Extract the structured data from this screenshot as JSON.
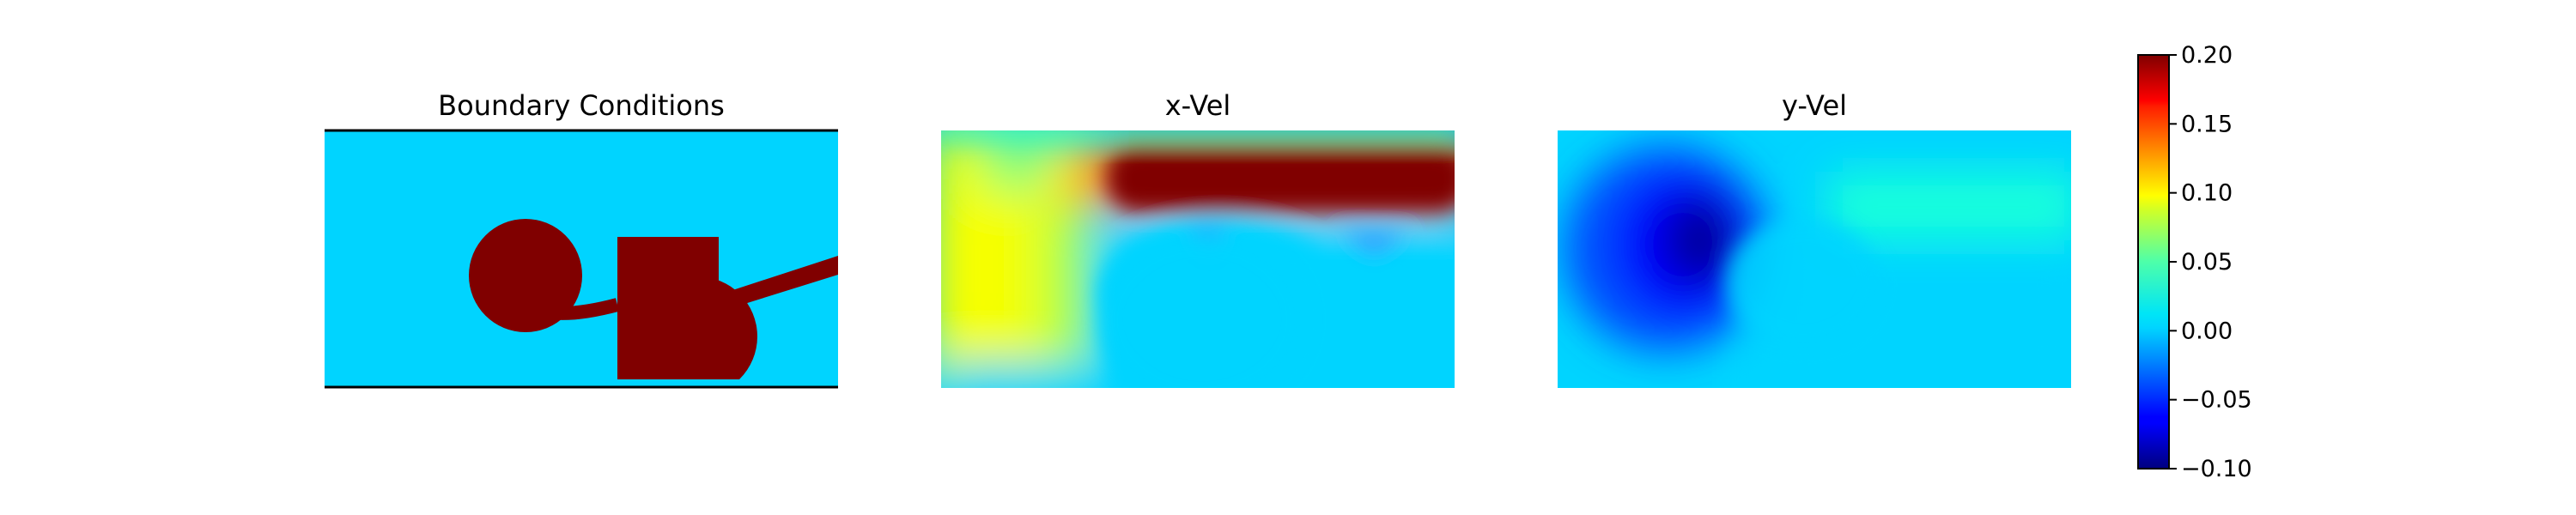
{
  "chart_data": {
    "type": "heatmap",
    "panels": [
      {
        "id": "boundary",
        "title": "Boundary Conditions"
      },
      {
        "id": "xvel",
        "title": "x-Vel"
      },
      {
        "id": "yvel",
        "title": "y-Vel"
      }
    ],
    "colorbar": {
      "colormap": "jet",
      "range": [
        -0.1,
        0.2
      ],
      "ticks": [
        0.2,
        0.15,
        0.1,
        0.05,
        0.0,
        -0.05,
        -0.1
      ],
      "tick_labels": [
        "0.20",
        "0.15",
        "0.10",
        "0.05",
        "0.00",
        "−0.05",
        "−0.10"
      ]
    },
    "colors": {
      "obstacle": "#800000",
      "fluid": "#00d4ff",
      "wall": "#000000"
    }
  }
}
